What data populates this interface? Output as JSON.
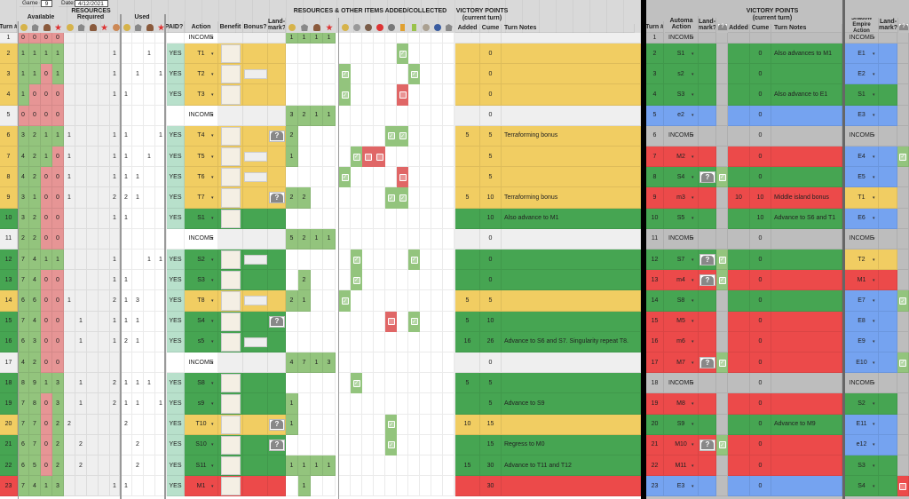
{
  "header": {
    "game_label": "Game #:",
    "game_value": "9",
    "date_label": "Date:",
    "date_value": "4/12/2021",
    "resources_title": "RESOURCES",
    "available_title": "Available",
    "required_title": "Required",
    "used_title": "Used",
    "turn_col": "Turn #",
    "paid_col": "PAID?",
    "action_col": "Action",
    "benefit_col": "Benefit",
    "bonus_col": "Bonus?",
    "landmark_col": "Land-mark?",
    "added_title": "RESOURCES & OTHER ITEMS ADDED/COLLECTED",
    "vp_title": "VICTORY POINTS",
    "vp_subtitle": "(current turn)",
    "vp_added": "Added",
    "vp_cume": "Cume",
    "turn_notes": "Turn Notes"
  },
  "automa_header": {
    "turn_col": "Turn #",
    "action_col": "Automa Action",
    "landmark_col": "Land-mark?",
    "vp_title": "VICTORY POINTS",
    "vp_subtitle": "(current turn)",
    "vp_added": "Added",
    "vp_cume": "Cume",
    "turn_notes": "Turn Notes",
    "shadow_col": "Shadow Empire Action",
    "shadow_landmark_col": "Land-mark?"
  },
  "resource_icons": [
    "gold-icon",
    "ore-icon",
    "mushroom-icon",
    "star-icon"
  ],
  "added_icons": [
    "tent-icon",
    "robot-icon",
    "elephant-icon",
    "red-helmet-icon",
    "landmark-icon",
    "orange-card-icon",
    "green-card-icon",
    "grey-disc-icon",
    "blue-disc-icon",
    "ore-icon"
  ],
  "colors": {
    "yellow": "#f1cd62",
    "green": "#46a552",
    "red": "#ec4a4a",
    "blue": "#75a3f0",
    "grey": "#bdbdbd",
    "light_green": "#93c47d",
    "pink": "#e69595"
  },
  "rows": [
    {
      "turn": "1",
      "color": "light",
      "avail": [
        "0",
        "0",
        "0",
        "0"
      ],
      "req": [
        "",
        "",
        "",
        "",
        ""
      ],
      "used": [
        "",
        "",
        "",
        "",
        ""
      ],
      "paid": "",
      "action": "INCOME",
      "added": [
        "1",
        "1",
        "1",
        "1"
      ],
      "vp_added": "",
      "vp_cume": "",
      "notes": ""
    },
    {
      "turn": "2",
      "color": "yellow",
      "avail": [
        "1",
        "1",
        "1",
        "1"
      ],
      "req": [
        "",
        "",
        "",
        "",
        "1"
      ],
      "used": [
        "",
        "",
        "1",
        ""
      ],
      "paid": "YES",
      "action": "T1",
      "added": [
        "",
        "",
        "",
        ""
      ],
      "vp_added": "",
      "vp_cume": "0",
      "notes": ""
    },
    {
      "turn": "3",
      "color": "yellow",
      "avail": [
        "1",
        "1",
        "0",
        "1"
      ],
      "req": [
        "",
        "",
        "",
        "",
        "1"
      ],
      "used": [
        "",
        "1",
        "",
        "1"
      ],
      "paid": "YES",
      "action": "T2",
      "added": [
        "",
        "",
        "",
        ""
      ],
      "vp_added": "",
      "vp_cume": "0",
      "notes": ""
    },
    {
      "turn": "4",
      "color": "yellow",
      "avail": [
        "1",
        "0",
        "0",
        "0"
      ],
      "req": [
        "",
        "",
        "",
        "",
        "1"
      ],
      "used": [
        "1",
        "",
        "",
        ""
      ],
      "paid": "YES",
      "action": "T3",
      "added": [
        "",
        "",
        "",
        ""
      ],
      "vp_added": "",
      "vp_cume": "0",
      "notes": ""
    },
    {
      "turn": "5",
      "color": "light",
      "avail": [
        "0",
        "0",
        "0",
        "0"
      ],
      "req": [
        "",
        "",
        "",
        "",
        ""
      ],
      "used": [
        "",
        "",
        "",
        ""
      ],
      "paid": "",
      "action": "INCOME",
      "added": [
        "3",
        "2",
        "1",
        "1"
      ],
      "vp_added": "",
      "vp_cume": "0",
      "notes": ""
    },
    {
      "turn": "6",
      "color": "yellow",
      "avail": [
        "3",
        "2",
        "1",
        "1"
      ],
      "req": [
        "1",
        "",
        "",
        "",
        "1"
      ],
      "used": [
        "1",
        "",
        "",
        "1"
      ],
      "paid": "YES",
      "action": "T4",
      "added": [
        "2",
        "",
        "",
        ""
      ],
      "vp_added": "5",
      "vp_cume": "5",
      "notes": "Terraforming bonus"
    },
    {
      "turn": "7",
      "color": "yellow",
      "avail": [
        "4",
        "2",
        "1",
        "0"
      ],
      "req": [
        "1",
        "",
        "",
        "",
        "1"
      ],
      "used": [
        "1",
        "",
        "1",
        ""
      ],
      "paid": "YES",
      "action": "T5",
      "added": [
        "1",
        "",
        "",
        ""
      ],
      "vp_added": "",
      "vp_cume": "5",
      "notes": ""
    },
    {
      "turn": "8",
      "color": "yellow",
      "avail": [
        "4",
        "2",
        "0",
        "0"
      ],
      "req": [
        "1",
        "",
        "",
        "",
        "1"
      ],
      "used": [
        "1",
        "1",
        "",
        ""
      ],
      "paid": "YES",
      "action": "T6",
      "added": [
        "",
        "",
        "",
        ""
      ],
      "vp_added": "",
      "vp_cume": "5",
      "notes": ""
    },
    {
      "turn": "9",
      "color": "yellow",
      "avail": [
        "3",
        "1",
        "0",
        "0"
      ],
      "req": [
        "1",
        "",
        "",
        "",
        "2"
      ],
      "used": [
        "2",
        "1",
        "",
        ""
      ],
      "paid": "YES",
      "action": "T7",
      "added": [
        "2",
        "2",
        "",
        ""
      ],
      "vp_added": "5",
      "vp_cume": "10",
      "notes": "Terraforming bonus"
    },
    {
      "turn": "10",
      "color": "green",
      "avail": [
        "3",
        "2",
        "0",
        "0"
      ],
      "req": [
        "",
        "",
        "",
        "",
        "1"
      ],
      "used": [
        "1",
        "",
        "",
        ""
      ],
      "paid": "YES",
      "action": "S1",
      "added": [
        "",
        "",
        "",
        ""
      ],
      "vp_added": "",
      "vp_cume": "10",
      "notes": "Also advance to M1"
    },
    {
      "turn": "11",
      "color": "light",
      "avail": [
        "2",
        "2",
        "0",
        "0"
      ],
      "req": [
        "",
        "",
        "",
        "",
        ""
      ],
      "used": [
        "",
        "",
        "",
        ""
      ],
      "paid": "",
      "action": "INCOME",
      "added": [
        "5",
        "2",
        "1",
        "1"
      ],
      "vp_added": "",
      "vp_cume": "0",
      "notes": ""
    },
    {
      "turn": "12",
      "color": "green",
      "avail": [
        "7",
        "4",
        "1",
        "1"
      ],
      "req": [
        "",
        "",
        "",
        "",
        "1"
      ],
      "used": [
        "",
        "",
        "1",
        "1"
      ],
      "paid": "YES",
      "action": "S2",
      "added": [
        "",
        "",
        "",
        ""
      ],
      "vp_added": "",
      "vp_cume": "0",
      "notes": ""
    },
    {
      "turn": "13",
      "color": "green",
      "avail": [
        "7",
        "4",
        "0",
        "0"
      ],
      "req": [
        "",
        "",
        "",
        "",
        "1"
      ],
      "used": [
        "1",
        "",
        "",
        ""
      ],
      "paid": "YES",
      "action": "S3",
      "added": [
        "",
        "2",
        "",
        ""
      ],
      "vp_added": "",
      "vp_cume": "0",
      "notes": ""
    },
    {
      "turn": "14",
      "color": "yellow",
      "avail": [
        "6",
        "6",
        "0",
        "0"
      ],
      "req": [
        "1",
        "",
        "",
        "",
        "2"
      ],
      "used": [
        "1",
        "3",
        "",
        ""
      ],
      "paid": "YES",
      "action": "T8",
      "added": [
        "2",
        "1",
        "",
        ""
      ],
      "vp_added": "5",
      "vp_cume": "5",
      "notes": ""
    },
    {
      "turn": "15",
      "color": "green",
      "avail": [
        "7",
        "4",
        "0",
        "0"
      ],
      "req": [
        "",
        "1",
        "",
        "",
        "1"
      ],
      "used": [
        "1",
        "1",
        "",
        ""
      ],
      "paid": "YES",
      "action": "S4",
      "added": [
        "",
        "",
        "",
        ""
      ],
      "vp_added": "5",
      "vp_cume": "10",
      "notes": ""
    },
    {
      "turn": "16",
      "color": "green",
      "avail": [
        "6",
        "3",
        "0",
        "0"
      ],
      "req": [
        "",
        "1",
        "",
        "",
        "1"
      ],
      "used": [
        "2",
        "1",
        "",
        ""
      ],
      "paid": "YES",
      "action": "s5",
      "added": [
        "",
        "",
        "",
        ""
      ],
      "vp_added": "16",
      "vp_cume": "26",
      "notes": "Advance to S6 and S7. Singularity repeat T8."
    },
    {
      "turn": "17",
      "color": "light",
      "avail": [
        "4",
        "2",
        "0",
        "0"
      ],
      "req": [
        "",
        "",
        "",
        "",
        ""
      ],
      "used": [
        "",
        "",
        "",
        ""
      ],
      "paid": "",
      "action": "INCOME",
      "added": [
        "4",
        "7",
        "1",
        "3"
      ],
      "vp_added": "",
      "vp_cume": "0",
      "notes": ""
    },
    {
      "turn": "18",
      "color": "green",
      "avail": [
        "8",
        "9",
        "1",
        "3"
      ],
      "req": [
        "",
        "1",
        "",
        "",
        "2"
      ],
      "used": [
        "1",
        "1",
        "1",
        ""
      ],
      "paid": "YES",
      "action": "S8",
      "added": [
        "",
        "",
        "",
        ""
      ],
      "vp_added": "5",
      "vp_cume": "5",
      "notes": ""
    },
    {
      "turn": "19",
      "color": "green",
      "avail": [
        "7",
        "8",
        "0",
        "3"
      ],
      "req": [
        "",
        "1",
        "",
        "",
        "2"
      ],
      "used": [
        "1",
        "1",
        "",
        "1"
      ],
      "paid": "YES",
      "action": "s9",
      "added": [
        "1",
        "",
        "",
        ""
      ],
      "vp_added": "",
      "vp_cume": "5",
      "notes": "Advance to S9"
    },
    {
      "turn": "20",
      "color": "yellow",
      "avail": [
        "7",
        "7",
        "0",
        "2"
      ],
      "req": [
        "2",
        "",
        "",
        "",
        ""
      ],
      "used": [
        "2",
        "",
        "",
        ""
      ],
      "paid": "YES",
      "action": "T10",
      "added": [
        "1",
        "",
        "",
        ""
      ],
      "vp_added": "10",
      "vp_cume": "15",
      "notes": ""
    },
    {
      "turn": "21",
      "color": "green",
      "avail": [
        "6",
        "7",
        "0",
        "2"
      ],
      "req": [
        "",
        "2",
        "",
        "",
        ""
      ],
      "used": [
        "",
        "2",
        "",
        ""
      ],
      "paid": "YES",
      "action": "S10",
      "added": [
        "",
        "",
        "",
        ""
      ],
      "vp_added": "",
      "vp_cume": "15",
      "notes": "Regress to M0"
    },
    {
      "turn": "22",
      "color": "green",
      "avail": [
        "6",
        "5",
        "0",
        "2"
      ],
      "req": [
        "",
        "2",
        "",
        "",
        ""
      ],
      "used": [
        "",
        "2",
        "",
        ""
      ],
      "paid": "YES",
      "action": "S11",
      "added": [
        "1",
        "1",
        "1",
        "1"
      ],
      "vp_added": "15",
      "vp_cume": "30",
      "notes": "Advance to T11 and T12"
    },
    {
      "turn": "23",
      "color": "red",
      "avail": [
        "7",
        "4",
        "1",
        "3"
      ],
      "req": [
        "",
        "",
        "",
        "",
        "1"
      ],
      "used": [
        "1",
        "",
        "",
        ""
      ],
      "paid": "YES",
      "action": "M1",
      "added": [
        "",
        "1",
        "",
        ""
      ],
      "vp_added": "",
      "vp_cume": "30",
      "notes": ""
    }
  ],
  "automa_rows": [
    {
      "turn": "1",
      "color": "grey",
      "action": "INCOME",
      "landmark": false,
      "vp_added": "",
      "vp_cume": "",
      "notes": "",
      "shadow": "INCOME",
      "shadow_color": "grey",
      "shadow_lm": ""
    },
    {
      "turn": "2",
      "color": "green",
      "action": "S1",
      "landmark": false,
      "vp_added": "",
      "vp_cume": "0",
      "notes": "Also advances to M1",
      "shadow": "E1",
      "shadow_color": "blue",
      "shadow_lm": ""
    },
    {
      "turn": "3",
      "color": "green",
      "action": "s2",
      "landmark": false,
      "vp_added": "",
      "vp_cume": "0",
      "notes": "",
      "shadow": "E2",
      "shadow_color": "blue",
      "shadow_lm": ""
    },
    {
      "turn": "4",
      "color": "green",
      "action": "S3",
      "landmark": false,
      "vp_added": "",
      "vp_cume": "0",
      "notes": "Also advance to E1",
      "shadow": "S1",
      "shadow_color": "green",
      "shadow_lm": ""
    },
    {
      "turn": "5",
      "color": "blue",
      "action": "e2",
      "landmark": false,
      "vp_added": "",
      "vp_cume": "0",
      "notes": "",
      "shadow": "E3",
      "shadow_color": "blue",
      "shadow_lm": ""
    },
    {
      "turn": "6",
      "color": "grey",
      "action": "INCOME",
      "landmark": false,
      "vp_added": "",
      "vp_cume": "0",
      "notes": "",
      "shadow": "INCOME",
      "shadow_color": "grey",
      "shadow_lm": ""
    },
    {
      "turn": "7",
      "color": "red",
      "action": "M2",
      "landmark": false,
      "vp_added": "",
      "vp_cume": "0",
      "notes": "",
      "shadow": "E4",
      "shadow_color": "blue",
      "shadow_lm": "check"
    },
    {
      "turn": "8",
      "color": "green",
      "action": "S4",
      "landmark": true,
      "vp_added": "",
      "vp_cume": "0",
      "notes": "",
      "shadow": "E5",
      "shadow_color": "blue",
      "shadow_lm": ""
    },
    {
      "turn": "9",
      "color": "red",
      "action": "m3",
      "landmark": false,
      "vp_added": "10",
      "vp_cume": "10",
      "notes": "Middle island bonus",
      "shadow": "T1",
      "shadow_color": "yellow",
      "shadow_lm": ""
    },
    {
      "turn": "10",
      "color": "green",
      "action": "S5",
      "landmark": false,
      "vp_added": "",
      "vp_cume": "10",
      "notes": "Advance to S6 and T1",
      "shadow": "E6",
      "shadow_color": "blue",
      "shadow_lm": ""
    },
    {
      "turn": "11",
      "color": "grey",
      "action": "INCOME",
      "landmark": false,
      "vp_added": "",
      "vp_cume": "0",
      "notes": "",
      "shadow": "INCOME",
      "shadow_color": "grey",
      "shadow_lm": ""
    },
    {
      "turn": "12",
      "color": "green",
      "action": "S7",
      "landmark": true,
      "vp_added": "",
      "vp_cume": "0",
      "notes": "",
      "shadow": "T2",
      "shadow_color": "yellow",
      "shadow_lm": ""
    },
    {
      "turn": "13",
      "color": "red",
      "action": "m4",
      "landmark": true,
      "vp_added": "",
      "vp_cume": "0",
      "notes": "",
      "shadow": "M1",
      "shadow_color": "red",
      "shadow_lm": ""
    },
    {
      "turn": "14",
      "color": "green",
      "action": "S8",
      "landmark": false,
      "vp_added": "",
      "vp_cume": "0",
      "notes": "",
      "shadow": "E7",
      "shadow_color": "blue",
      "shadow_lm": "check"
    },
    {
      "turn": "15",
      "color": "red",
      "action": "M5",
      "landmark": false,
      "vp_added": "",
      "vp_cume": "0",
      "notes": "",
      "shadow": "E8",
      "shadow_color": "blue",
      "shadow_lm": ""
    },
    {
      "turn": "16",
      "color": "red",
      "action": "m6",
      "landmark": false,
      "vp_added": "",
      "vp_cume": "0",
      "notes": "",
      "shadow": "E9",
      "shadow_color": "blue",
      "shadow_lm": ""
    },
    {
      "turn": "17",
      "color": "red",
      "action": "M7",
      "landmark": true,
      "vp_added": "",
      "vp_cume": "0",
      "notes": "",
      "shadow": "E10",
      "shadow_color": "blue",
      "shadow_lm": "check"
    },
    {
      "turn": "18",
      "color": "grey",
      "action": "INCOME",
      "landmark": false,
      "vp_added": "",
      "vp_cume": "0",
      "notes": "",
      "shadow": "INCOME",
      "shadow_color": "grey",
      "shadow_lm": ""
    },
    {
      "turn": "19",
      "color": "red",
      "action": "M8",
      "landmark": false,
      "vp_added": "",
      "vp_cume": "0",
      "notes": "",
      "shadow": "S2",
      "shadow_color": "green",
      "shadow_lm": ""
    },
    {
      "turn": "20",
      "color": "green",
      "action": "S9",
      "landmark": false,
      "vp_added": "",
      "vp_cume": "0",
      "notes": "Advance to M9",
      "shadow": "E11",
      "shadow_color": "blue",
      "shadow_lm": ""
    },
    {
      "turn": "21",
      "color": "red",
      "action": "M10",
      "landmark": true,
      "vp_added": "",
      "vp_cume": "0",
      "notes": "",
      "shadow": "e12",
      "shadow_color": "blue",
      "shadow_lm": ""
    },
    {
      "turn": "22",
      "color": "red",
      "action": "M11",
      "landmark": false,
      "vp_added": "",
      "vp_cume": "0",
      "notes": "",
      "shadow": "S3",
      "shadow_color": "green",
      "shadow_lm": ""
    },
    {
      "turn": "23",
      "color": "blue",
      "action": "E3",
      "landmark": false,
      "vp_added": "",
      "vp_cume": "0",
      "notes": "",
      "shadow": "S4",
      "shadow_color": "green",
      "shadow_lm": "empty"
    }
  ]
}
